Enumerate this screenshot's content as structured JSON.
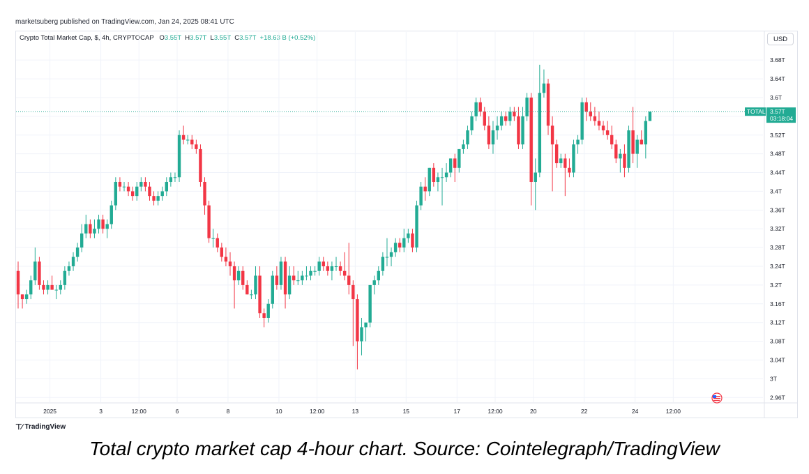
{
  "header": {
    "publisher": "marketsuberg published on TradingView.com, Jan 24, 2025 08:41 UTC"
  },
  "legend": {
    "symbol": "Crypto Total Market Cap, $, 4h, CRYPTOCAP",
    "o_label": "O",
    "o_value": "3.55T",
    "h_label": "H",
    "h_value": "3.57T",
    "l_label": "L",
    "l_value": "3.55T",
    "c_label": "C",
    "c_value": "3.57T",
    "change": "+18.63 B (+0.52%)"
  },
  "currency_button": "USD",
  "price_tag": {
    "label": "TOTAL",
    "price": "3.57T",
    "countdown": "03:18:04"
  },
  "colors": {
    "up": "#22ab94",
    "down": "#f23645",
    "grid": "#f0f3fa",
    "axis_text": "#131722",
    "tag_bg": "#22ab94"
  },
  "footer": {
    "logo": "TradingView"
  },
  "caption": "Total crypto market cap 4-hour chart. Source: Cointelegraph/TradingView",
  "chart_data": {
    "type": "candlestick",
    "title": "",
    "y_unit": "T",
    "ylim": [
      2.95,
      3.71
    ],
    "y_ticks": [
      {
        "label": "3.68T",
        "value": 3.68
      },
      {
        "label": "3.64T",
        "value": 3.64
      },
      {
        "label": "3.6T",
        "value": 3.6
      },
      {
        "label": "3.56T",
        "value": 3.56
      },
      {
        "label": "3.52T",
        "value": 3.52
      },
      {
        "label": "3.48T",
        "value": 3.48
      },
      {
        "label": "3.44T",
        "value": 3.44
      },
      {
        "label": "3.4T",
        "value": 3.4
      },
      {
        "label": "3.36T",
        "value": 3.36
      },
      {
        "label": "3.32T",
        "value": 3.32
      },
      {
        "label": "3.28T",
        "value": 3.28
      },
      {
        "label": "3.24T",
        "value": 3.24
      },
      {
        "label": "3.2T",
        "value": 3.2
      },
      {
        "label": "3.16T",
        "value": 3.16
      },
      {
        "label": "3.12T",
        "value": 3.12
      },
      {
        "label": "3.08T",
        "value": 3.08
      },
      {
        "label": "3.04T",
        "value": 3.04
      },
      {
        "label": "3T",
        "value": 3.0
      },
      {
        "label": "2.96T",
        "value": 2.96
      }
    ],
    "x_ticks": [
      {
        "label": "2025",
        "candle": 7.5
      },
      {
        "label": "3",
        "candle": 19.5
      },
      {
        "label": "12:00",
        "candle": 28.5
      },
      {
        "label": "6",
        "candle": 37.5
      },
      {
        "label": "8",
        "candle": 49.5
      },
      {
        "label": "10",
        "candle": 61.5
      },
      {
        "label": "12:00",
        "candle": 70.5
      },
      {
        "label": "13",
        "candle": 79.5
      },
      {
        "label": "15",
        "candle": 91.5
      },
      {
        "label": "17",
        "candle": 103.5
      },
      {
        "label": "12:00",
        "candle": 112.5
      },
      {
        "label": "20",
        "candle": 121.5
      },
      {
        "label": "22",
        "candle": 133.5
      },
      {
        "label": "24",
        "candle": 145.5
      },
      {
        "label": "12:00",
        "candle": 154.5
      }
    ],
    "last_price": 3.57,
    "candles": [
      [
        3.23,
        3.25,
        3.15,
        3.18
      ],
      [
        3.18,
        3.18,
        3.15,
        3.17
      ],
      [
        3.17,
        3.19,
        3.16,
        3.18
      ],
      [
        3.18,
        3.22,
        3.17,
        3.21
      ],
      [
        3.21,
        3.28,
        3.2,
        3.25
      ],
      [
        3.25,
        3.26,
        3.19,
        3.2
      ],
      [
        3.2,
        3.21,
        3.18,
        3.19
      ],
      [
        3.19,
        3.21,
        3.18,
        3.2
      ],
      [
        3.2,
        3.22,
        3.19,
        3.19
      ],
      [
        3.19,
        3.2,
        3.17,
        3.19
      ],
      [
        3.19,
        3.21,
        3.18,
        3.2
      ],
      [
        3.2,
        3.24,
        3.19,
        3.23
      ],
      [
        3.23,
        3.25,
        3.22,
        3.24
      ],
      [
        3.24,
        3.27,
        3.23,
        3.26
      ],
      [
        3.26,
        3.29,
        3.25,
        3.28
      ],
      [
        3.28,
        3.33,
        3.27,
        3.31
      ],
      [
        3.31,
        3.35,
        3.3,
        3.33
      ],
      [
        3.33,
        3.34,
        3.3,
        3.31
      ],
      [
        3.31,
        3.34,
        3.3,
        3.32
      ],
      [
        3.32,
        3.35,
        3.31,
        3.34
      ],
      [
        3.34,
        3.35,
        3.31,
        3.32
      ],
      [
        3.32,
        3.34,
        3.3,
        3.33
      ],
      [
        3.33,
        3.38,
        3.32,
        3.37
      ],
      [
        3.37,
        3.43,
        3.36,
        3.42
      ],
      [
        3.42,
        3.43,
        3.4,
        3.41
      ],
      [
        3.41,
        3.42,
        3.4,
        3.41
      ],
      [
        3.41,
        3.42,
        3.39,
        3.4
      ],
      [
        3.4,
        3.41,
        3.38,
        3.39
      ],
      [
        3.39,
        3.42,
        3.38,
        3.41
      ],
      [
        3.41,
        3.43,
        3.4,
        3.42
      ],
      [
        3.42,
        3.43,
        3.4,
        3.41
      ],
      [
        3.41,
        3.42,
        3.38,
        3.39
      ],
      [
        3.39,
        3.4,
        3.37,
        3.38
      ],
      [
        3.38,
        3.4,
        3.37,
        3.39
      ],
      [
        3.39,
        3.41,
        3.38,
        3.4
      ],
      [
        3.4,
        3.43,
        3.39,
        3.42
      ],
      [
        3.42,
        3.44,
        3.41,
        3.43
      ],
      [
        3.43,
        3.44,
        3.42,
        3.43
      ],
      [
        3.43,
        3.53,
        3.42,
        3.52
      ],
      [
        3.52,
        3.54,
        3.5,
        3.51
      ],
      [
        3.51,
        3.52,
        3.5,
        3.51
      ],
      [
        3.51,
        3.52,
        3.49,
        3.5
      ],
      [
        3.5,
        3.51,
        3.48,
        3.49
      ],
      [
        3.49,
        3.5,
        3.41,
        3.42
      ],
      [
        3.42,
        3.43,
        3.35,
        3.37
      ],
      [
        3.37,
        3.38,
        3.29,
        3.3
      ],
      [
        3.3,
        3.32,
        3.28,
        3.3
      ],
      [
        3.3,
        3.31,
        3.27,
        3.28
      ],
      [
        3.28,
        3.29,
        3.25,
        3.26
      ],
      [
        3.26,
        3.28,
        3.24,
        3.25
      ],
      [
        3.25,
        3.27,
        3.22,
        3.24
      ],
      [
        3.24,
        3.25,
        3.15,
        3.21
      ],
      [
        3.21,
        3.24,
        3.2,
        3.23
      ],
      [
        3.23,
        3.24,
        3.19,
        3.2
      ],
      [
        3.2,
        3.21,
        3.18,
        3.18
      ],
      [
        3.18,
        3.19,
        3.17,
        3.18
      ],
      [
        3.18,
        3.24,
        3.17,
        3.22
      ],
      [
        3.22,
        3.24,
        3.13,
        3.14
      ],
      [
        3.14,
        3.15,
        3.11,
        3.13
      ],
      [
        3.13,
        3.17,
        3.12,
        3.16
      ],
      [
        3.16,
        3.23,
        3.15,
        3.22
      ],
      [
        3.22,
        3.24,
        3.19,
        3.2
      ],
      [
        3.2,
        3.26,
        3.19,
        3.25
      ],
      [
        3.25,
        3.26,
        3.15,
        3.18
      ],
      [
        3.18,
        3.24,
        3.17,
        3.22
      ],
      [
        3.22,
        3.24,
        3.2,
        3.21
      ],
      [
        3.21,
        3.23,
        3.2,
        3.21
      ],
      [
        3.21,
        3.23,
        3.2,
        3.22
      ],
      [
        3.22,
        3.24,
        3.21,
        3.22
      ],
      [
        3.22,
        3.24,
        3.21,
        3.23
      ],
      [
        3.23,
        3.24,
        3.22,
        3.23
      ],
      [
        3.23,
        3.26,
        3.22,
        3.25
      ],
      [
        3.25,
        3.26,
        3.23,
        3.24
      ],
      [
        3.24,
        3.25,
        3.22,
        3.23
      ],
      [
        3.23,
        3.25,
        3.21,
        3.24
      ],
      [
        3.24,
        3.26,
        3.23,
        3.24
      ],
      [
        3.24,
        3.25,
        3.22,
        3.23
      ],
      [
        3.23,
        3.27,
        3.21,
        3.22
      ],
      [
        3.22,
        3.29,
        3.18,
        3.2
      ],
      [
        3.2,
        3.21,
        3.07,
        3.17
      ],
      [
        3.17,
        3.18,
        3.02,
        3.08
      ],
      [
        3.08,
        3.13,
        3.05,
        3.11
      ],
      [
        3.11,
        3.12,
        3.08,
        3.12
      ],
      [
        3.12,
        3.2,
        3.11,
        3.2
      ],
      [
        3.2,
        3.22,
        3.18,
        3.21
      ],
      [
        3.21,
        3.24,
        3.2,
        3.23
      ],
      [
        3.23,
        3.27,
        3.22,
        3.26
      ],
      [
        3.26,
        3.3,
        3.24,
        3.26
      ],
      [
        3.26,
        3.28,
        3.24,
        3.27
      ],
      [
        3.27,
        3.3,
        3.26,
        3.29
      ],
      [
        3.29,
        3.3,
        3.27,
        3.28
      ],
      [
        3.28,
        3.32,
        3.27,
        3.3
      ],
      [
        3.3,
        3.32,
        3.29,
        3.31
      ],
      [
        3.31,
        3.32,
        3.27,
        3.28
      ],
      [
        3.28,
        3.38,
        3.27,
        3.37
      ],
      [
        3.37,
        3.42,
        3.36,
        3.41
      ],
      [
        3.41,
        3.43,
        3.38,
        3.4
      ],
      [
        3.4,
        3.45,
        3.39,
        3.45
      ],
      [
        3.45,
        3.46,
        3.41,
        3.42
      ],
      [
        3.42,
        3.44,
        3.4,
        3.43
      ],
      [
        3.43,
        3.45,
        3.37,
        3.43
      ],
      [
        3.43,
        3.46,
        3.42,
        3.44
      ],
      [
        3.44,
        3.47,
        3.43,
        3.47
      ],
      [
        3.47,
        3.48,
        3.42,
        3.45
      ],
      [
        3.45,
        3.49,
        3.44,
        3.49
      ],
      [
        3.49,
        3.51,
        3.48,
        3.5
      ],
      [
        3.5,
        3.54,
        3.49,
        3.53
      ],
      [
        3.53,
        3.57,
        3.52,
        3.56
      ],
      [
        3.56,
        3.6,
        3.55,
        3.59
      ],
      [
        3.59,
        3.6,
        3.56,
        3.57
      ],
      [
        3.57,
        3.58,
        3.53,
        3.54
      ],
      [
        3.54,
        3.56,
        3.49,
        3.5
      ],
      [
        3.5,
        3.55,
        3.48,
        3.53
      ],
      [
        3.53,
        3.56,
        3.51,
        3.54
      ],
      [
        3.54,
        3.57,
        3.53,
        3.56
      ],
      [
        3.56,
        3.57,
        3.54,
        3.55
      ],
      [
        3.55,
        3.58,
        3.54,
        3.57
      ],
      [
        3.57,
        3.58,
        3.55,
        3.56
      ],
      [
        3.56,
        3.58,
        3.49,
        3.5
      ],
      [
        3.5,
        3.58,
        3.49,
        3.56
      ],
      [
        3.56,
        3.61,
        3.55,
        3.6
      ],
      [
        3.6,
        3.61,
        3.37,
        3.42
      ],
      [
        3.42,
        3.47,
        3.36,
        3.44
      ],
      [
        3.44,
        3.67,
        3.43,
        3.61
      ],
      [
        3.61,
        3.66,
        3.6,
        3.63
      ],
      [
        3.63,
        3.64,
        3.52,
        3.54
      ],
      [
        3.54,
        3.56,
        3.4,
        3.5
      ],
      [
        3.5,
        3.51,
        3.45,
        3.46
      ],
      [
        3.46,
        3.48,
        3.45,
        3.47
      ],
      [
        3.47,
        3.48,
        3.39,
        3.45
      ],
      [
        3.45,
        3.47,
        3.43,
        3.44
      ],
      [
        3.44,
        3.51,
        3.43,
        3.5
      ],
      [
        3.5,
        3.52,
        3.48,
        3.51
      ],
      [
        3.51,
        3.6,
        3.5,
        3.59
      ],
      [
        3.59,
        3.6,
        3.55,
        3.57
      ],
      [
        3.57,
        3.59,
        3.55,
        3.56
      ],
      [
        3.56,
        3.58,
        3.54,
        3.55
      ],
      [
        3.55,
        3.57,
        3.53,
        3.54
      ],
      [
        3.54,
        3.55,
        3.52,
        3.53
      ],
      [
        3.53,
        3.55,
        3.51,
        3.52
      ],
      [
        3.52,
        3.54,
        3.49,
        3.5
      ],
      [
        3.5,
        3.51,
        3.46,
        3.47
      ],
      [
        3.47,
        3.49,
        3.44,
        3.48
      ],
      [
        3.48,
        3.5,
        3.43,
        3.45
      ],
      [
        3.45,
        3.54,
        3.44,
        3.53
      ],
      [
        3.53,
        3.58,
        3.46,
        3.48
      ],
      [
        3.48,
        3.52,
        3.45,
        3.51
      ],
      [
        3.51,
        3.53,
        3.5,
        3.5
      ],
      [
        3.5,
        3.56,
        3.47,
        3.55
      ],
      [
        3.55,
        3.57,
        3.55,
        3.57
      ]
    ]
  }
}
